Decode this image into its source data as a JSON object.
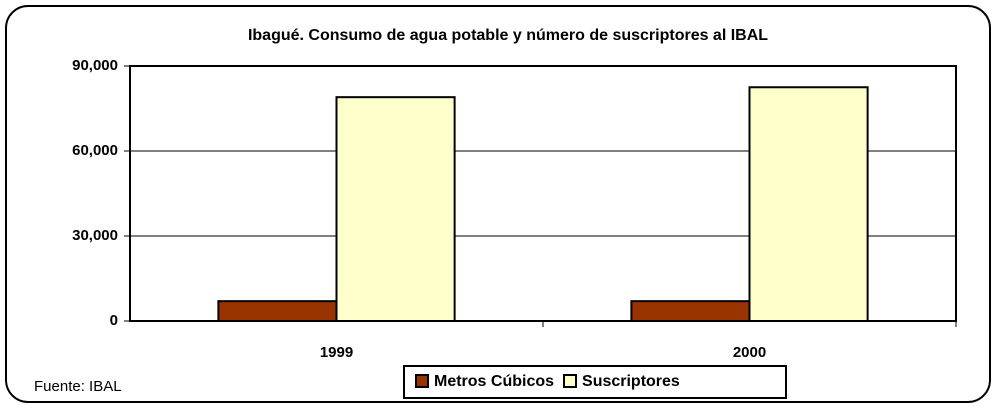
{
  "chart_data": {
    "type": "bar",
    "title": "Ibagué. Consumo de agua potable y número de suscriptores al IBAL",
    "categories": [
      "1999",
      "2000"
    ],
    "series": [
      {
        "name": "Metros Cúbicos",
        "color": "#993300",
        "values": [
          7000,
          7000
        ]
      },
      {
        "name": "Suscriptores",
        "color": "#ffffcc",
        "values": [
          79000,
          82500
        ]
      }
    ],
    "ylim": [
      0,
      90000
    ],
    "yticks": [
      0,
      {
        "value": 30000,
        "label": "30,000"
      },
      {
        "value": 60000,
        "label": "60,000"
      },
      {
        "value": 90000,
        "label": "90,000"
      }
    ],
    "grid": true,
    "legend": "bottom",
    "annotations": [
      "Fuente: IBAL"
    ]
  }
}
